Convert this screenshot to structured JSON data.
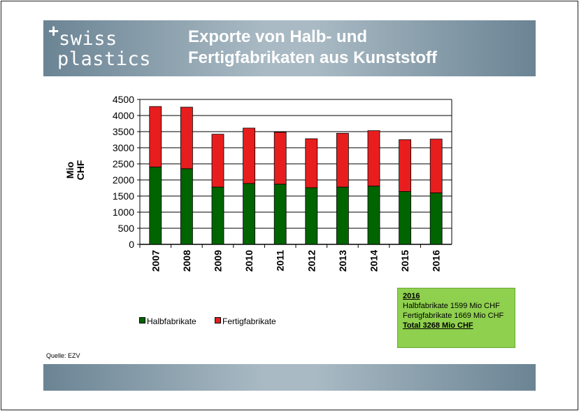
{
  "logo": {
    "plus": "+",
    "line1": "swiss",
    "line2": "plastics"
  },
  "title": {
    "line1": "Exporte von Halb- und",
    "line2": "Fertigfabrikaten aus Kunststoff"
  },
  "source": "Quelle: EZV",
  "infobox": {
    "year": "2016",
    "line1": "Halbfabrikate 1599 Mio CHF",
    "line2": "Fertigfabrikate 1669 Mio CHF",
    "total": "Total 3268 Mio CHF",
    "color": "#8fd04e"
  },
  "chart_data": {
    "type": "bar",
    "stacked": true,
    "ylabel": "Mio CHF",
    "ylim": [
      0,
      4500
    ],
    "yticks": [
      0,
      500,
      1000,
      1500,
      2000,
      2500,
      3000,
      3500,
      4000,
      4500
    ],
    "categories": [
      "2007",
      "2008",
      "2009",
      "2010",
      "2011",
      "2012",
      "2013",
      "2014",
      "2015",
      "2016"
    ],
    "series": [
      {
        "name": "Halbfabrikate",
        "color": "#006400",
        "values": [
          2400,
          2350,
          1780,
          1890,
          1870,
          1760,
          1780,
          1810,
          1640,
          1599
        ]
      },
      {
        "name": "Fertigfabrikate",
        "color": "#e81e1e",
        "values": [
          1880,
          1910,
          1640,
          1720,
          1610,
          1520,
          1670,
          1720,
          1610,
          1669
        ]
      }
    ],
    "grid": true,
    "legend": "bottom"
  }
}
